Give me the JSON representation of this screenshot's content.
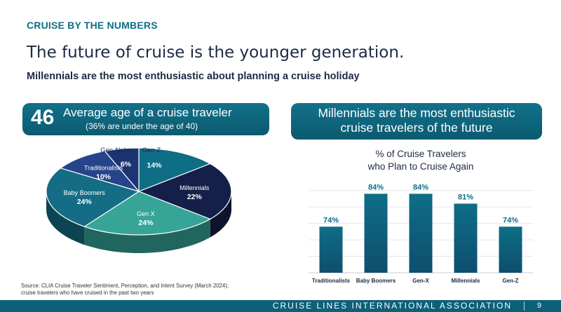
{
  "header": {
    "section_label": "CRUISE BY THE NUMBERS",
    "title": "The future of cruise is the younger generation.",
    "subtitle": "Millennials are the most enthusiastic about planning a cruise holiday"
  },
  "left_banner": {
    "number": "46",
    "line1": "Average age of a cruise traveler",
    "line2": "(36% are under the age of 40)"
  },
  "right_banner": {
    "line1": "Millennials are the most enthusiastic",
    "line2": "cruise travelers of the future"
  },
  "chart_data": [
    {
      "type": "pie",
      "slices": [
        {
          "label": "Gen Z",
          "value": 14,
          "value_label": "14%",
          "color": "#0e6e86"
        },
        {
          "label": "Millennials",
          "value": 22,
          "value_label": "22%",
          "color": "#14204a"
        },
        {
          "label": "Gen X",
          "value": 24,
          "value_label": "24%",
          "color": "#36a597"
        },
        {
          "label": "Baby Boomers",
          "value": 24,
          "value_label": "24%",
          "color": "#146d84"
        },
        {
          "label": "Traditionalists",
          "value": 10,
          "value_label": "10%",
          "color": "#26448a"
        },
        {
          "label": "Gen Alpha",
          "value": 6,
          "value_label": "6%",
          "color": "#1c3474"
        }
      ]
    },
    {
      "type": "bar",
      "title_line1": "% of Cruise Travelers",
      "title_line2": "who Plan to Cruise Again",
      "categories": [
        "Traditionalists",
        "Baby Boomers",
        "Gen-X",
        "Millennials",
        "Gen-Z"
      ],
      "values": [
        74,
        84,
        84,
        81,
        74
      ],
      "value_labels": [
        "74%",
        "84%",
        "84%",
        "81%",
        "74%"
      ],
      "ylim": [
        60,
        86
      ],
      "grid": true,
      "bar_color": "#0e4e6e"
    }
  ],
  "source": {
    "line1": "Source: CLIA Cruise Traveler Sentiment, Perception, and Intent Survey (March 2024);",
    "line2": "cruise travelers who have cruised in the past two years"
  },
  "footer": {
    "org": "CRUISE LINES INTERNATIONAL ASSOCIATION",
    "page": "9"
  }
}
